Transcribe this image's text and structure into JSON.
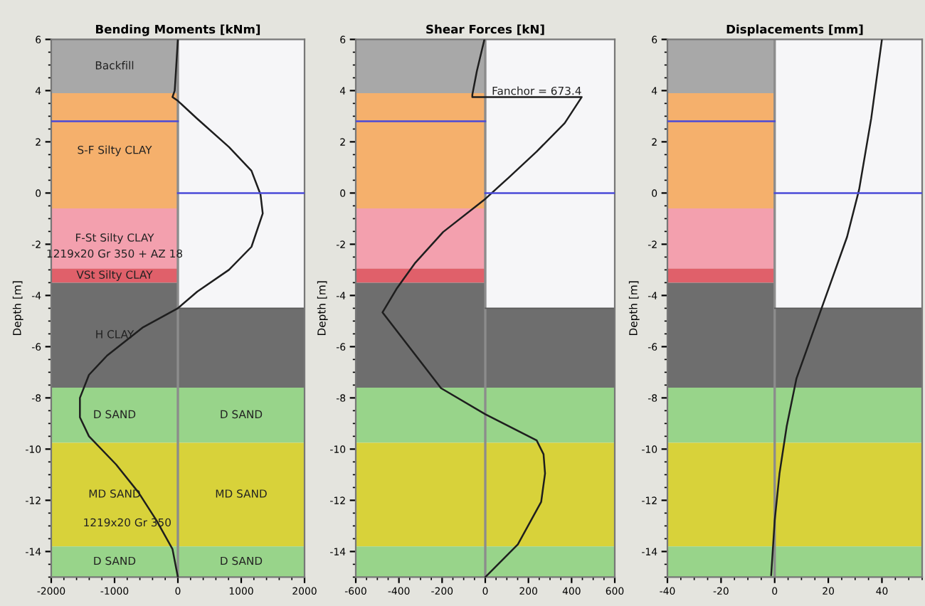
{
  "chart_data": [
    {
      "type": "line",
      "title": "Bending Moments [kNm]",
      "ylabel": "Depth [m]",
      "xlim": [
        -2000,
        2000
      ],
      "xticks": [
        -2000,
        -1000,
        0,
        1000,
        2000
      ],
      "ylim": [
        -15,
        6
      ],
      "yticks": [
        -14,
        -12,
        -10,
        -8,
        -6,
        -4,
        -2,
        0,
        2,
        4,
        6
      ],
      "grid": false,
      "series": [
        {
          "color": "#1e1e1e",
          "x": [
            0,
            -50,
            -85,
            0,
            306,
            806,
            1162,
            1305,
            1340,
            1162,
            806,
            306,
            0,
            -549,
            -1119,
            -1404,
            -1547,
            -1547,
            -1404,
            -976,
            -620,
            -335,
            -86,
            0
          ],
          "values": [
            6,
            4,
            3.75,
            3.6,
            2.9,
            1.8,
            0.87,
            -0.06,
            -0.8,
            -2.1,
            -3.0,
            -3.85,
            -4.5,
            -5.24,
            -6.35,
            -7.1,
            -8.0,
            -8.76,
            -9.5,
            -10.6,
            -11.7,
            -12.8,
            -13.9,
            -15
          ]
        },
        {
          "color": "#4a4ad8",
          "x": [
            -2000,
            0
          ],
          "values": [
            2.8,
            2.8
          ]
        },
        {
          "color": "#4a4ad8",
          "x": [
            0,
            2000
          ],
          "values": [
            0,
            0
          ]
        }
      ],
      "bands": [
        {
          "axis": "y",
          "from": 3.9,
          "to": 6,
          "label": "Backfill",
          "color": "#a8a8a8"
        },
        {
          "axis": "y",
          "from": -0.6,
          "to": 3.9,
          "label": "S-F Silty CLAY",
          "color": "#f5b06c"
        },
        {
          "axis": "y",
          "from": -2.95,
          "to": -0.6,
          "label": "F-St Silty CLAY",
          "color": "#f3a0ae"
        },
        {
          "axis": "y",
          "from": -3.5,
          "to": -2.95,
          "label": "VSt Silty CLAY",
          "color": "#e0606a"
        },
        {
          "axis": "y",
          "from": -7.6,
          "to": -3.5,
          "label": "H CLAY",
          "color": "#6e6e6e"
        },
        {
          "axis": "y",
          "from": -9.75,
          "to": -7.6,
          "label": "D SAND",
          "color": "#98d48a"
        },
        {
          "axis": "y",
          "from": -13.8,
          "to": -9.75,
          "label": "MD SAND",
          "color": "#d8d23a"
        },
        {
          "axis": "y",
          "from": -15,
          "to": -13.8,
          "label": "D SAND",
          "color": "#98d48a"
        },
        {
          "axis": "x",
          "from": 0,
          "to": 2000,
          "color": "#f6f6f8"
        }
      ],
      "ref_lines": [
        {
          "axis": "x",
          "value": 0,
          "color": "#8c8c8c"
        },
        {
          "axis": "y",
          "value": -4.5,
          "color": "#5a5a5a"
        }
      ],
      "annotations": [
        "1219x20 Gr 350 + AZ 18",
        "1219x20 Gr 350"
      ]
    },
    {
      "type": "line",
      "title": "Shear Forces [kN]",
      "ylabel": "Depth [m]",
      "xlim": [
        -600,
        600
      ],
      "xticks": [
        -600,
        -400,
        -200,
        0,
        200,
        400,
        600
      ],
      "ylim": [
        -15,
        6
      ],
      "yticks": [
        -14,
        -12,
        -10,
        -8,
        -6,
        -4,
        -2,
        0,
        2,
        4,
        6
      ],
      "grid": false,
      "series": [
        {
          "color": "#1e1e1e",
          "x": [
            -4,
            -39,
            -60,
            -60,
            447,
            368,
            238,
            108,
            0,
            -195,
            -324,
            -411,
            -476,
            -205,
            0,
            238,
            270,
            277,
            259,
            151,
            0
          ],
          "values": [
            6,
            4.76,
            3.84,
            3.75,
            3.75,
            2.73,
            1.62,
            0.6,
            -0.23,
            -1.52,
            -2.72,
            -3.74,
            -4.66,
            -7.62,
            -8.64,
            -9.66,
            -10.2,
            -10.95,
            -12.06,
            -13.72,
            -15
          ]
        },
        {
          "color": "#4a4ad8",
          "x": [
            -600,
            0
          ],
          "values": [
            2.8,
            2.8
          ]
        },
        {
          "color": "#4a4ad8",
          "x": [
            0,
            600
          ],
          "values": [
            0,
            0
          ]
        }
      ],
      "bands": [
        {
          "axis": "y",
          "from": 3.9,
          "to": 6,
          "color": "#a8a8a8"
        },
        {
          "axis": "y",
          "from": -0.6,
          "to": 3.9,
          "color": "#f5b06c"
        },
        {
          "axis": "y",
          "from": -2.95,
          "to": -0.6,
          "color": "#f3a0ae"
        },
        {
          "axis": "y",
          "from": -3.5,
          "to": -2.95,
          "color": "#e0606a"
        },
        {
          "axis": "y",
          "from": -7.6,
          "to": -3.5,
          "color": "#6e6e6e"
        },
        {
          "axis": "y",
          "from": -9.75,
          "to": -7.6,
          "color": "#98d48a"
        },
        {
          "axis": "y",
          "from": -13.8,
          "to": -9.75,
          "color": "#d8d23a"
        },
        {
          "axis": "y",
          "from": -15,
          "to": -13.8,
          "color": "#98d48a"
        },
        {
          "axis": "x",
          "from": 0,
          "to": 600,
          "color": "#f6f6f8"
        }
      ],
      "ref_lines": [
        {
          "axis": "x",
          "value": 0,
          "color": "#8c8c8c"
        },
        {
          "axis": "y",
          "value": -4.5,
          "color": "#5a5a5a"
        }
      ],
      "annotations": [
        {
          "text": "Fanchor = 673.4",
          "x": 30,
          "y": 3.75
        }
      ]
    },
    {
      "type": "line",
      "title": "Displacements [mm]",
      "ylabel": "Depth [m]",
      "xlim": [
        -40,
        55
      ],
      "xticks": [
        -40,
        -20,
        0,
        20,
        40
      ],
      "ylim": [
        -15,
        6
      ],
      "yticks": [
        -14,
        -12,
        -10,
        -8,
        -6,
        -4,
        -2,
        0,
        2,
        4,
        6
      ],
      "grid": false,
      "series": [
        {
          "color": "#1e1e1e",
          "x": [
            40,
            36,
            31.5,
            27,
            20.7,
            14.4,
            8.1,
            4.5,
            1.8,
            0,
            -1.3
          ],
          "values": [
            6,
            2.91,
            0.14,
            -1.71,
            -3.56,
            -5.4,
            -7.25,
            -9.1,
            -10.95,
            -12.8,
            -14.92
          ]
        },
        {
          "color": "#4a4ad8",
          "x": [
            -40,
            0
          ],
          "values": [
            2.8,
            2.8
          ]
        },
        {
          "color": "#4a4ad8",
          "x": [
            0,
            55
          ],
          "values": [
            0,
            0
          ]
        }
      ],
      "bands": [
        {
          "axis": "y",
          "from": 3.9,
          "to": 6,
          "color": "#a8a8a8"
        },
        {
          "axis": "y",
          "from": -0.6,
          "to": 3.9,
          "color": "#f5b06c"
        },
        {
          "axis": "y",
          "from": -2.95,
          "to": -0.6,
          "color": "#f3a0ae"
        },
        {
          "axis": "y",
          "from": -3.5,
          "to": -2.95,
          "color": "#e0606a"
        },
        {
          "axis": "y",
          "from": -7.6,
          "to": -3.5,
          "color": "#6e6e6e"
        },
        {
          "axis": "y",
          "from": -9.75,
          "to": -7.6,
          "color": "#98d48a"
        },
        {
          "axis": "y",
          "from": -13.8,
          "to": -9.75,
          "color": "#d8d23a"
        },
        {
          "axis": "y",
          "from": -15,
          "to": -13.8,
          "color": "#98d48a"
        },
        {
          "axis": "x",
          "from": 0,
          "to": 55,
          "color": "#f6f6f8"
        }
      ],
      "ref_lines": [
        {
          "axis": "x",
          "value": 0,
          "color": "#8c8c8c"
        },
        {
          "axis": "y",
          "value": -4.5,
          "color": "#5a5a5a"
        }
      ]
    }
  ]
}
